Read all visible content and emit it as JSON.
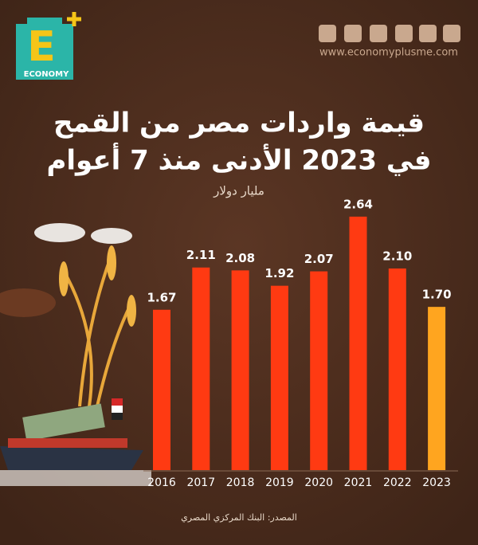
{
  "branding": {
    "logo_letter": "E",
    "logo_text": "ECONOMY",
    "website": "www.economyplusme.com"
  },
  "source": "المصدر: البنك المركزي المصري",
  "chart_data": {
    "type": "bar",
    "title": "قيمة واردات مصر من القمح",
    "subtitle": "في 2023 الأدنى منذ 7 أعوام",
    "unit": "مليار دولار",
    "categories": [
      "2016",
      "2017",
      "2018",
      "2019",
      "2020",
      "2021",
      "2022",
      "2023"
    ],
    "values": [
      1.67,
      2.11,
      2.08,
      1.92,
      2.07,
      2.64,
      2.1,
      1.7
    ],
    "value_labels": [
      "1.67",
      "2.11",
      "2.08",
      "1.92",
      "2.07",
      "2.64",
      "2.10",
      "1.70"
    ],
    "colors": [
      "#ff3a12",
      "#ff3a12",
      "#ff3a12",
      "#ff3a12",
      "#ff3a12",
      "#ff3a12",
      "#ff3a12",
      "#ffa51f"
    ]
  }
}
